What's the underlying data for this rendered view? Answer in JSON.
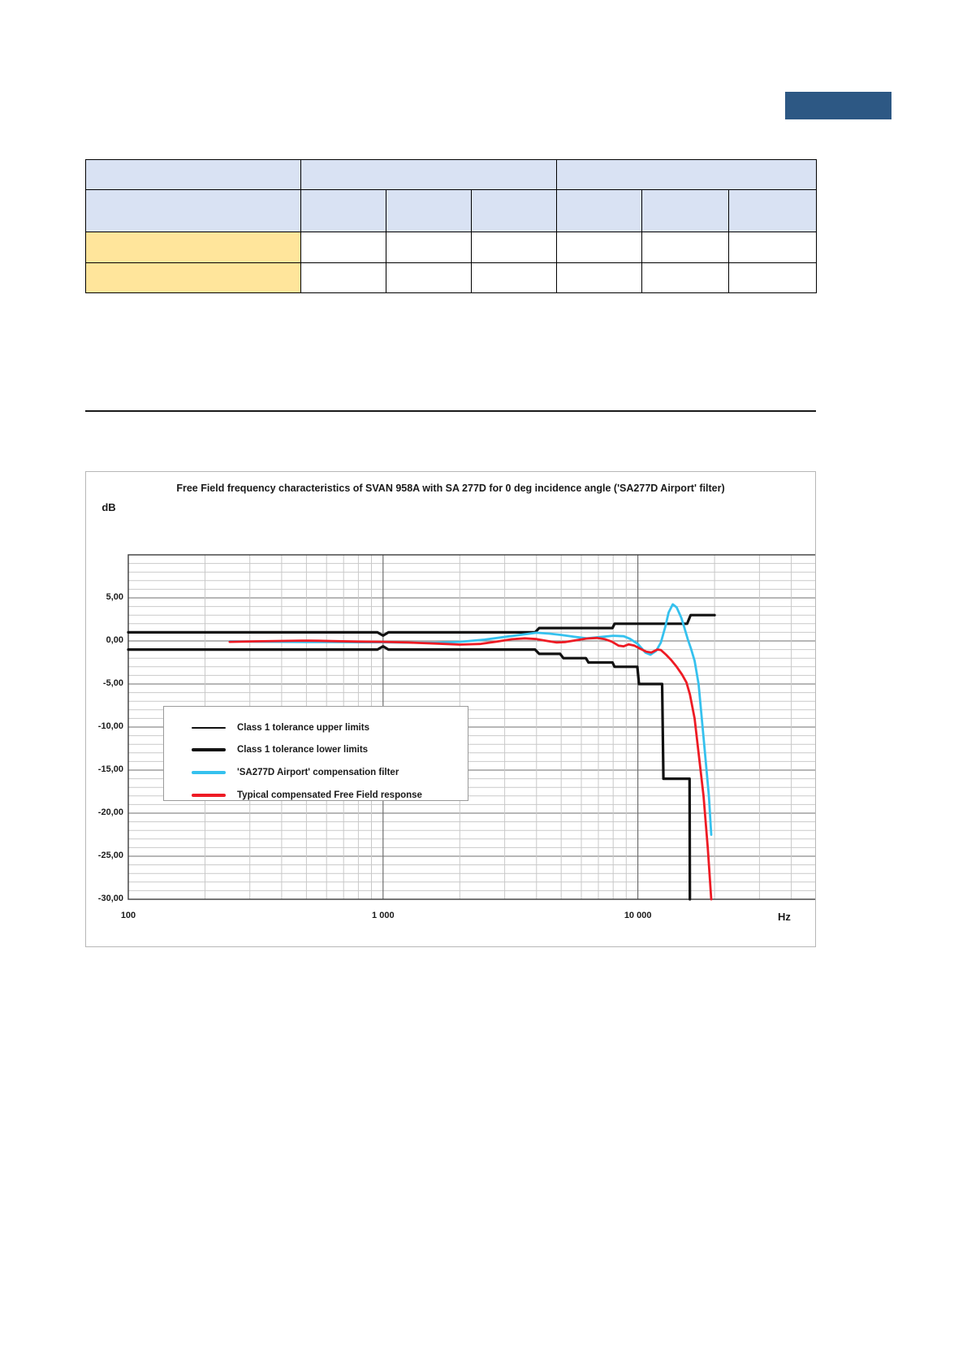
{
  "page": {
    "background": "#ffffff"
  },
  "header": {
    "logo_placeholder": {
      "color": "#2d5884"
    }
  },
  "table": {
    "header_bg": "#d9e2f3",
    "highlight_bg": "#ffe59b",
    "border_color": "#000000",
    "header_row1_cells": [
      "",
      "",
      ""
    ],
    "header_row2_cells": [
      "",
      "",
      "",
      "",
      "",
      "",
      ""
    ],
    "data_rows": [
      [
        "",
        "",
        "",
        "",
        "",
        "",
        ""
      ],
      [
        "",
        "",
        "",
        "",
        "",
        "",
        ""
      ]
    ]
  },
  "divider": {
    "color": "#1a1a1a"
  },
  "chart_data": {
    "type": "line",
    "title": "Free Field frequency characteristics of SVAN 958A with SA 277D for 0 deg incidence angle ('SA277D Airport' filter)",
    "xlabel": "Hz",
    "ylabel": "dB",
    "x_scale": "log",
    "xlim": [
      100,
      50000
    ],
    "ylim": [
      -30,
      10
    ],
    "grid": true,
    "legend_position": "inside lower-left",
    "x_ticks": [
      {
        "value": 100,
        "label": "100"
      },
      {
        "value": 1000,
        "label": "1 000"
      },
      {
        "value": 10000,
        "label": "10 000"
      }
    ],
    "y_ticks": [
      {
        "value": 5,
        "label": "5,00"
      },
      {
        "value": 0,
        "label": "0,00"
      },
      {
        "value": -5,
        "label": "-5,00"
      },
      {
        "value": -10,
        "label": "-10,00"
      },
      {
        "value": -15,
        "label": "-15,00"
      },
      {
        "value": -20,
        "label": "-20,00"
      },
      {
        "value": -25,
        "label": "-25,00"
      },
      {
        "value": -30,
        "label": "-30,00"
      }
    ],
    "colors": {
      "grid_minor": "#c9c9c9",
      "grid_major": "#8c8c8c",
      "axis": "#3c3c3c"
    },
    "series": [
      {
        "name": "Class 1 tolerance upper limits",
        "color": "#111111",
        "stroke_width": 3.2,
        "legend_weight": 2.4,
        "points": [
          [
            100,
            1
          ],
          [
            950,
            1
          ],
          [
            1000,
            0.62
          ],
          [
            1050,
            1
          ],
          [
            3950,
            1
          ],
          [
            4100,
            1.5
          ],
          [
            7950,
            1.5
          ],
          [
            8100,
            2
          ],
          [
            15600,
            2
          ],
          [
            16100,
            3
          ],
          [
            20000,
            3
          ]
        ]
      },
      {
        "name": "Class 1 tolerance lower limits",
        "color": "#111111",
        "stroke_width": 3.2,
        "legend_weight": 3.4,
        "points": [
          [
            100,
            -1
          ],
          [
            950,
            -1
          ],
          [
            1000,
            -0.62
          ],
          [
            1050,
            -1
          ],
          [
            3950,
            -1
          ],
          [
            4100,
            -1.5
          ],
          [
            4950,
            -1.5
          ],
          [
            5100,
            -2
          ],
          [
            6250,
            -2
          ],
          [
            6400,
            -2.5
          ],
          [
            7950,
            -2.5
          ],
          [
            8100,
            -3
          ],
          [
            9950,
            -3
          ],
          [
            10100,
            -5
          ],
          [
            12450,
            -5
          ],
          [
            12600,
            -16
          ],
          [
            15950,
            -16
          ],
          [
            16000,
            -30
          ]
        ]
      },
      {
        "name": "'SA277D Airport' compensation filter",
        "color": "#35c1ee",
        "stroke_width": 2.8,
        "legend_weight": 3.2,
        "points": [
          [
            250,
            -0.05
          ],
          [
            315,
            -0.08
          ],
          [
            400,
            -0.1
          ],
          [
            500,
            -0.12
          ],
          [
            630,
            -0.12
          ],
          [
            800,
            -0.15
          ],
          [
            1000,
            -0.15
          ],
          [
            1250,
            -0.2
          ],
          [
            1600,
            -0.22
          ],
          [
            2000,
            -0.1
          ],
          [
            2500,
            0.15
          ],
          [
            3150,
            0.55
          ],
          [
            4000,
            0.95
          ],
          [
            4500,
            0.85
          ],
          [
            5000,
            0.7
          ],
          [
            5600,
            0.5
          ],
          [
            6300,
            0.3
          ],
          [
            7100,
            0.45
          ],
          [
            8000,
            0.6
          ],
          [
            8800,
            0.55
          ],
          [
            9300,
            0.25
          ],
          [
            10000,
            -0.35
          ],
          [
            10700,
            -1.35
          ],
          [
            11200,
            -1.6
          ],
          [
            11800,
            -1.15
          ],
          [
            12300,
            -0.2
          ],
          [
            12800,
            1.6
          ],
          [
            13200,
            3.3
          ],
          [
            13700,
            4.25
          ],
          [
            14200,
            3.9
          ],
          [
            14800,
            2.7
          ],
          [
            15200,
            1.6
          ],
          [
            15700,
            0.2
          ],
          [
            16200,
            -1.0
          ],
          [
            16700,
            -2.3
          ],
          [
            17300,
            -5
          ],
          [
            18200,
            -12
          ],
          [
            19000,
            -18
          ],
          [
            19400,
            -22.5
          ]
        ]
      },
      {
        "name": "Typical compensated Free Field response",
        "color": "#ee1b24",
        "stroke_width": 2.8,
        "legend_weight": 3.2,
        "points": [
          [
            250,
            -0.1
          ],
          [
            315,
            -0.05
          ],
          [
            400,
            0
          ],
          [
            480,
            0.04
          ],
          [
            560,
            0.02
          ],
          [
            630,
            -0.02
          ],
          [
            800,
            -0.08
          ],
          [
            1000,
            -0.1
          ],
          [
            1250,
            -0.18
          ],
          [
            1600,
            -0.3
          ],
          [
            2000,
            -0.42
          ],
          [
            2400,
            -0.35
          ],
          [
            2800,
            -0.08
          ],
          [
            3200,
            0.2
          ],
          [
            3600,
            0.3
          ],
          [
            4000,
            0.22
          ],
          [
            4400,
            0
          ],
          [
            4800,
            -0.18
          ],
          [
            5200,
            -0.12
          ],
          [
            5700,
            0.08
          ],
          [
            6300,
            0.28
          ],
          [
            6900,
            0.35
          ],
          [
            7400,
            0.22
          ],
          [
            7900,
            -0.08
          ],
          [
            8400,
            -0.55
          ],
          [
            8800,
            -0.62
          ],
          [
            9200,
            -0.4
          ],
          [
            9700,
            -0.55
          ],
          [
            10200,
            -0.9
          ],
          [
            10800,
            -1.25
          ],
          [
            11300,
            -1.35
          ],
          [
            11900,
            -1.0
          ],
          [
            12300,
            -1.05
          ],
          [
            12900,
            -1.6
          ],
          [
            13500,
            -2.2
          ],
          [
            14200,
            -3.0
          ],
          [
            14900,
            -3.9
          ],
          [
            15500,
            -4.8
          ],
          [
            16000,
            -6.2
          ],
          [
            16700,
            -9
          ],
          [
            17300,
            -13
          ],
          [
            18100,
            -18
          ],
          [
            18800,
            -24
          ],
          [
            19400,
            -30
          ]
        ]
      }
    ]
  }
}
